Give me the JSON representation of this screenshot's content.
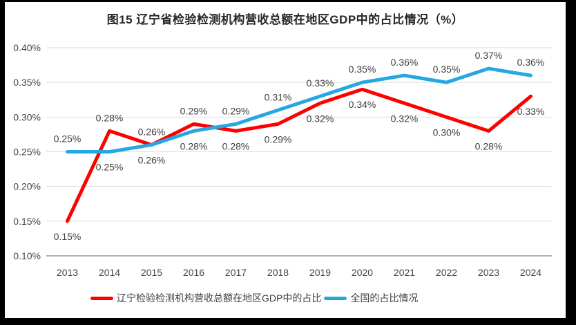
{
  "title": "图15 辽宁省检验检测机构营收总额在地区GDP中的占比情况（%）",
  "frame": {
    "outer_bg": "#000000",
    "chart_bg": "#ffffff"
  },
  "chart_data": {
    "type": "line",
    "title": "图15 辽宁省检验检测机构营收总额在地区GDP中的占比情况（%）",
    "categories": [
      "2013",
      "2014",
      "2015",
      "2016",
      "2017",
      "2018",
      "2019",
      "2020",
      "2021",
      "2022",
      "2023",
      "2024"
    ],
    "series": [
      {
        "name": "辽宁检验检测机构营收总额在地区GDP中的占比",
        "color": "#FF0000",
        "values": [
          0.15,
          0.28,
          0.26,
          0.29,
          0.28,
          0.29,
          0.32,
          0.34,
          0.32,
          0.3,
          0.28,
          0.33
        ],
        "data_labels": [
          "0.15%",
          "0.28%",
          "0.26%",
          "0.29%",
          "0.28%",
          "0.29%",
          "0.32%",
          "0.34%",
          "0.32%",
          "0.30%",
          "0.28%",
          "0.33%"
        ],
        "label_positions": [
          "below",
          "above",
          "above",
          "above",
          "below",
          "below",
          "below",
          "below",
          "below",
          "below",
          "below",
          "below"
        ]
      },
      {
        "name": "全国的占比情况",
        "color": "#25A8E1",
        "values": [
          0.25,
          0.25,
          0.26,
          0.28,
          0.29,
          0.31,
          0.33,
          0.35,
          0.36,
          0.35,
          0.37,
          0.36
        ],
        "data_labels": [
          "0.25%",
          "0.25%",
          "0.26%",
          "0.28%",
          "0.29%",
          "0.31%",
          "0.33%",
          "0.35%",
          "0.36%",
          "0.35%",
          "0.37%",
          "0.36%"
        ],
        "label_positions": [
          "above",
          "below",
          "below",
          "below",
          "above",
          "above",
          "above",
          "above",
          "above",
          "above",
          "above",
          "above"
        ]
      }
    ],
    "xlabel": "",
    "ylabel": "",
    "ylim": [
      0.1,
      0.4
    ],
    "yticks": [
      "0.40%",
      "0.35%",
      "0.30%",
      "0.25%",
      "0.20%",
      "0.15%",
      "0.10%"
    ],
    "grid": true,
    "legend_position": "bottom"
  }
}
